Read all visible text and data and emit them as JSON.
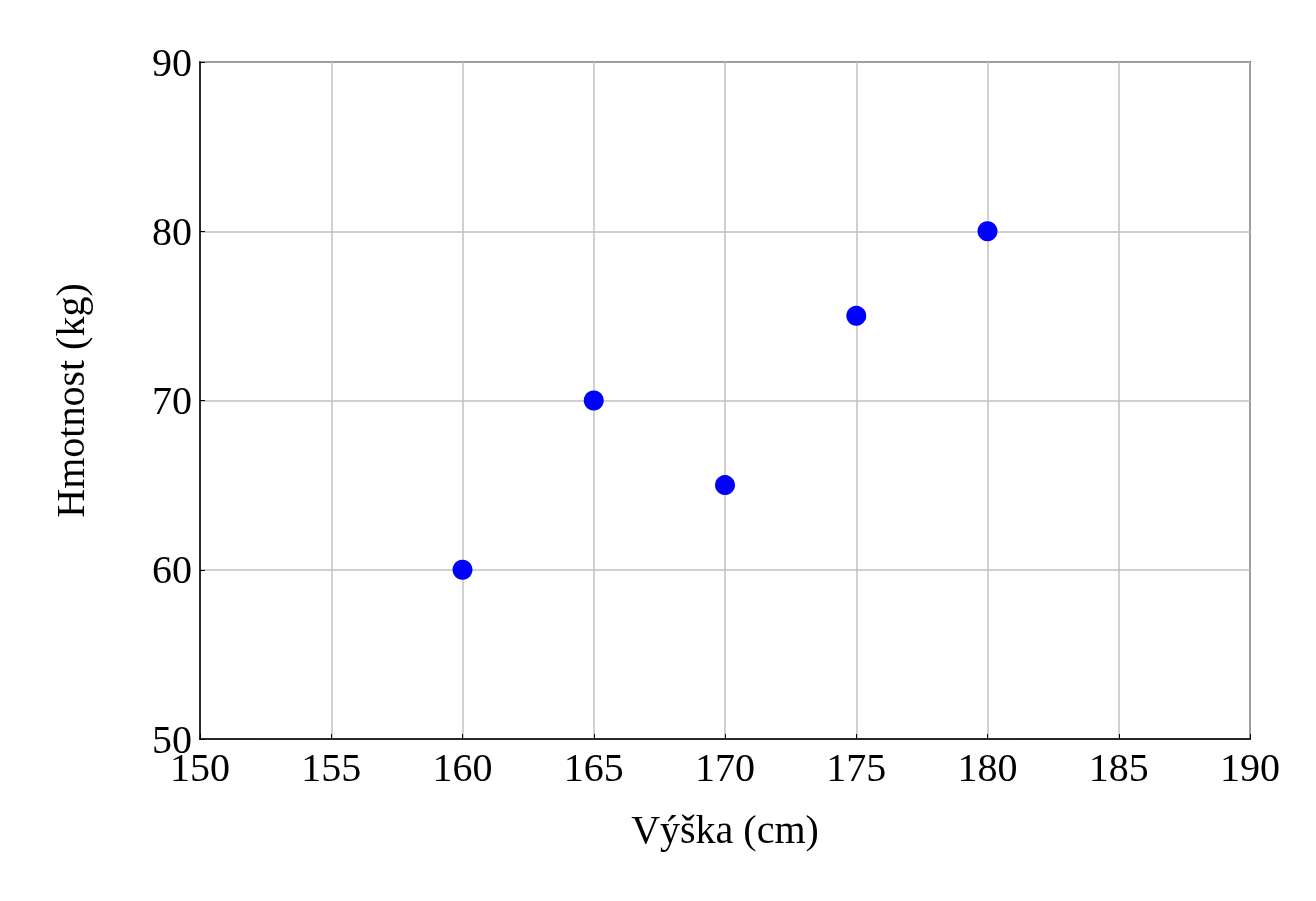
{
  "chart_data": {
    "type": "scatter",
    "xlabel": "Výška (cm)",
    "ylabel": "Hmotnost (kg)",
    "x": [
      160,
      165,
      170,
      175,
      180
    ],
    "series": [
      {
        "color": "#0000ff",
        "values": [
          60,
          70,
          65,
          75,
          80
        ]
      }
    ],
    "xlim": [
      150,
      190
    ],
    "xticks": [
      150,
      155,
      160,
      165,
      170,
      175,
      180,
      185,
      190
    ],
    "ylim": [
      50,
      90
    ],
    "yticks": [
      50,
      60,
      70,
      80,
      90
    ],
    "grid": true,
    "marker": "circle"
  }
}
